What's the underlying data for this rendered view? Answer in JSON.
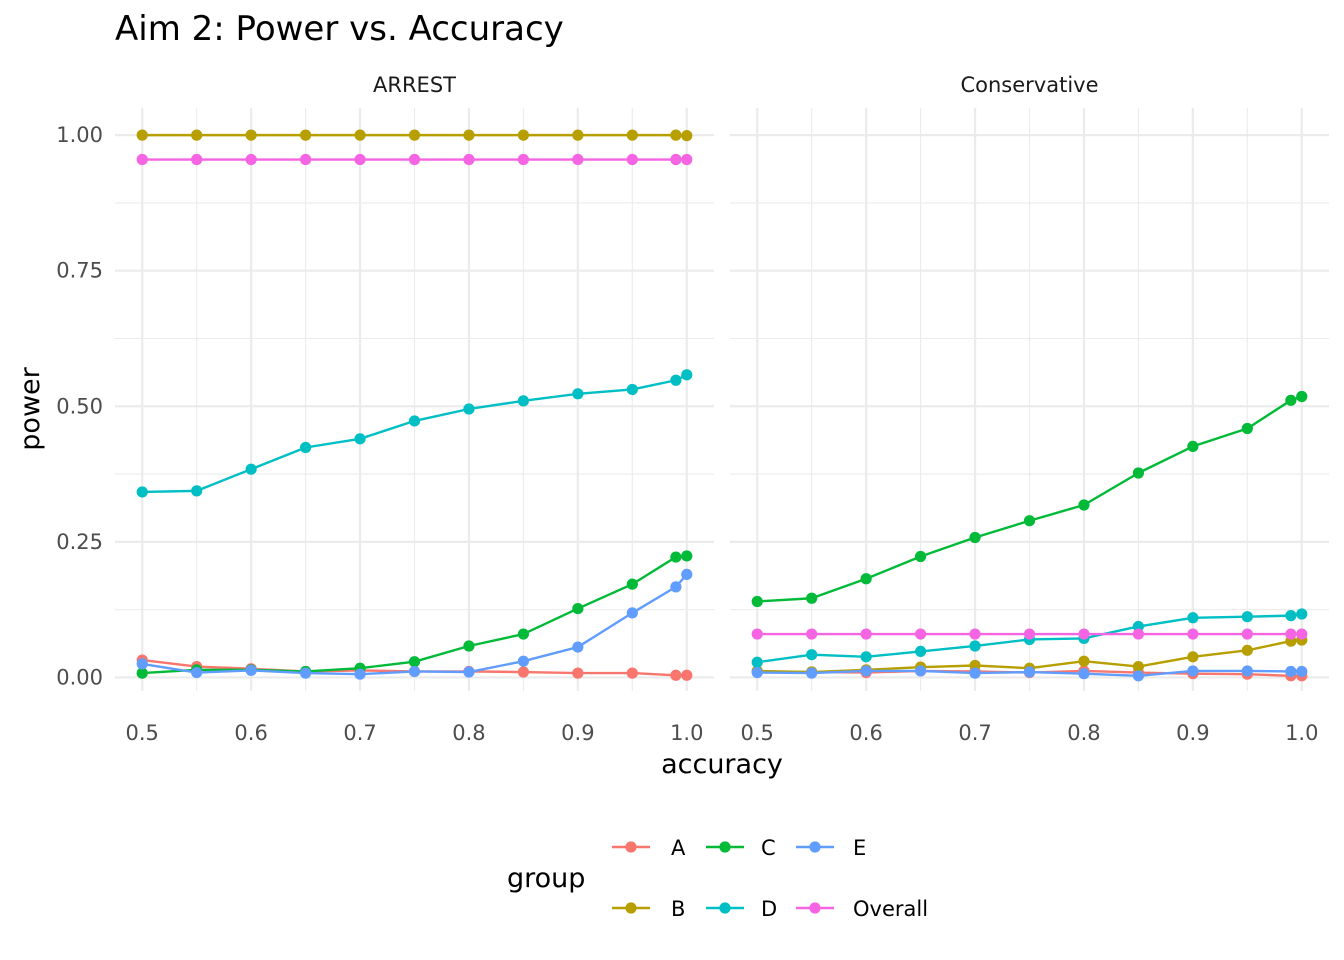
{
  "chart_data": {
    "type": "line",
    "title": "Aim 2: Power vs. Accuracy",
    "xlabel": "accuracy",
    "ylabel": "power",
    "xlim": [
      0.475,
      1.025
    ],
    "ylim": [
      -0.025,
      1.05
    ],
    "x_ticks": [
      "0.5",
      "0.6",
      "0.7",
      "0.8",
      "0.9",
      "1.0"
    ],
    "y_ticks": [
      "0.00",
      "0.25",
      "0.50",
      "0.75",
      "1.00"
    ],
    "grid": true,
    "legend": {
      "title": "group",
      "placement": "bottom",
      "entries": [
        "A",
        "B",
        "C",
        "D",
        "E",
        "Overall"
      ]
    },
    "colors": {
      "A": "#F8766D",
      "B": "#B79F00",
      "C": "#00BA38",
      "D": "#00BFC4",
      "E": "#619CFF",
      "Overall": "#F564E3"
    },
    "x": [
      0.5,
      0.55,
      0.6,
      0.65,
      0.7,
      0.75,
      0.8,
      0.85,
      0.9,
      0.95,
      0.99,
      1.0
    ],
    "facets": [
      {
        "label": "ARREST",
        "series": [
          {
            "name": "A",
            "values": [
              0.032,
              0.02,
              0.016,
              0.011,
              0.013,
              0.011,
              0.011,
              0.01,
              0.008,
              0.008,
              0.004,
              0.004
            ]
          },
          {
            "name": "B",
            "values": [
              1.0,
              1.0,
              1.0,
              1.0,
              1.0,
              1.0,
              1.0,
              1.0,
              1.0,
              1.0,
              1.0,
              0.999
            ]
          },
          {
            "name": "C",
            "values": [
              0.008,
              0.014,
              0.014,
              0.011,
              0.017,
              0.029,
              0.058,
              0.08,
              0.127,
              0.172,
              0.222,
              0.224
            ]
          },
          {
            "name": "D",
            "values": [
              0.342,
              0.344,
              0.384,
              0.424,
              0.44,
              0.473,
              0.495,
              0.51,
              0.523,
              0.531,
              0.548,
              0.558
            ]
          },
          {
            "name": "E",
            "values": [
              0.025,
              0.009,
              0.013,
              0.008,
              0.006,
              0.011,
              0.01,
              0.03,
              0.056,
              0.119,
              0.167,
              0.19
            ]
          },
          {
            "name": "Overall",
            "values": [
              0.955,
              0.955,
              0.955,
              0.955,
              0.955,
              0.955,
              0.955,
              0.955,
              0.955,
              0.955,
              0.955,
              0.955
            ]
          }
        ]
      },
      {
        "label": "Conservative",
        "series": [
          {
            "name": "A",
            "values": [
              0.011,
              0.01,
              0.009,
              0.012,
              0.011,
              0.009,
              0.012,
              0.009,
              0.007,
              0.006,
              0.003,
              0.003
            ]
          },
          {
            "name": "B",
            "values": [
              0.012,
              0.01,
              0.014,
              0.019,
              0.022,
              0.017,
              0.03,
              0.02,
              0.038,
              0.05,
              0.067,
              0.069
            ]
          },
          {
            "name": "C",
            "values": [
              0.14,
              0.146,
              0.182,
              0.223,
              0.258,
              0.289,
              0.318,
              0.377,
              0.426,
              0.459,
              0.511,
              0.518
            ]
          },
          {
            "name": "D",
            "values": [
              0.028,
              0.042,
              0.038,
              0.048,
              0.058,
              0.07,
              0.072,
              0.094,
              0.11,
              0.112,
              0.114,
              0.117
            ]
          },
          {
            "name": "E",
            "values": [
              0.009,
              0.008,
              0.012,
              0.012,
              0.008,
              0.01,
              0.007,
              0.003,
              0.012,
              0.012,
              0.011,
              0.011
            ]
          },
          {
            "name": "Overall",
            "values": [
              0.08,
              0.08,
              0.08,
              0.08,
              0.08,
              0.08,
              0.08,
              0.08,
              0.08,
              0.08,
              0.08,
              0.08
            ]
          }
        ]
      }
    ]
  }
}
